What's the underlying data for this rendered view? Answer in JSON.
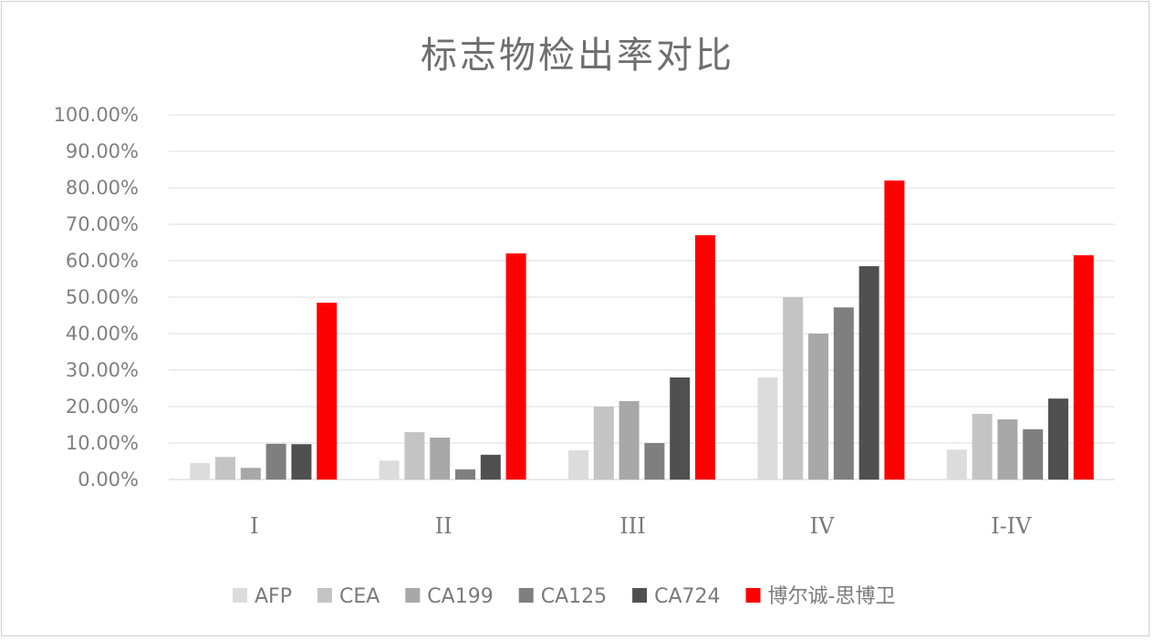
{
  "chart_data": {
    "type": "bar",
    "title": "标志物检出率对比",
    "xlabel": "",
    "ylabel": "",
    "ylim": [
      0,
      1
    ],
    "y_ticks": [
      "0.00%",
      "10.00%",
      "20.00%",
      "30.00%",
      "40.00%",
      "50.00%",
      "60.00%",
      "70.00%",
      "80.00%",
      "90.00%",
      "100.00%"
    ],
    "categories": [
      "I",
      "II",
      "III",
      "IV",
      "I-IV"
    ],
    "series": [
      {
        "name": "AFP",
        "color": "#dcdcdc",
        "values": [
          0.045,
          0.052,
          0.08,
          0.28,
          0.082
        ]
      },
      {
        "name": "CEA",
        "color": "#c4c4c4",
        "values": [
          0.062,
          0.13,
          0.2,
          0.5,
          0.18
        ]
      },
      {
        "name": "CA199",
        "color": "#a8a8a8",
        "values": [
          0.032,
          0.115,
          0.215,
          0.4,
          0.165
        ]
      },
      {
        "name": "CA125",
        "color": "#7f7f7f",
        "values": [
          0.098,
          0.028,
          0.1,
          0.472,
          0.138
        ]
      },
      {
        "name": "CA724",
        "color": "#505050",
        "values": [
          0.097,
          0.068,
          0.28,
          0.585,
          0.222
        ]
      },
      {
        "name": "博尔诚-思博卫",
        "color": "#ff0000",
        "values": [
          0.485,
          0.62,
          0.67,
          0.82,
          0.615
        ]
      }
    ],
    "grid": true,
    "legend": "bottom"
  }
}
